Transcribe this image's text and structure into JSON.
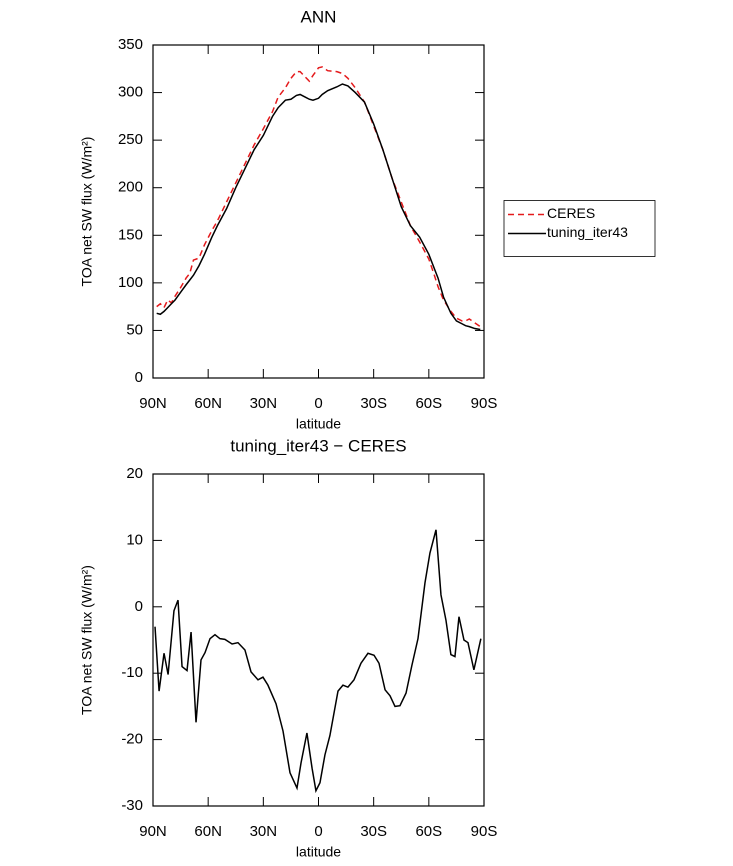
{
  "chart_data": [
    {
      "type": "line",
      "title": "ANN",
      "x_label": "latitude",
      "y_label": "TOA net SW flux (W/m²)",
      "x": [
        88,
        86,
        84,
        82,
        80,
        78,
        75,
        72,
        70,
        68,
        65,
        62,
        58,
        55,
        50,
        45,
        40,
        35,
        30,
        25,
        22,
        18,
        15,
        12,
        10,
        7,
        5,
        3,
        0,
        -2,
        -5,
        -10,
        -13,
        -16,
        -20,
        -25,
        -30,
        -35,
        -40,
        -45,
        -50,
        -55,
        -60,
        -63,
        -65,
        -68,
        -72,
        -75,
        -78,
        -80,
        -82,
        -85,
        -88
      ],
      "series": [
        {
          "name": "CERES",
          "color": "#e41a1c",
          "dash": "dashed",
          "values": [
            75,
            78,
            74,
            82,
            79,
            86,
            95,
            105,
            110,
            124,
            126,
            140,
            155,
            165,
            185,
            205,
            225,
            245,
            262,
            280,
            295,
            305,
            315,
            322,
            322,
            316,
            312,
            318,
            326,
            327,
            323,
            322,
            320,
            315,
            305,
            290,
            265,
            240,
            210,
            185,
            160,
            143,
            125,
            108,
            96,
            82,
            70,
            63,
            60,
            60,
            62,
            58,
            54
          ]
        },
        {
          "name": "tuning_iter43",
          "color": "#000000",
          "dash": "solid",
          "values": [
            68,
            67,
            70,
            74,
            78,
            82,
            90,
            98,
            103,
            108,
            118,
            130,
            148,
            160,
            178,
            200,
            220,
            240,
            255,
            275,
            284,
            292,
            293,
            297,
            298,
            295,
            293,
            292,
            294,
            298,
            302,
            306,
            309,
            307,
            300,
            290,
            267,
            240,
            210,
            180,
            160,
            148,
            130,
            115,
            105,
            85,
            68,
            60,
            57,
            55,
            54,
            52,
            51
          ]
        }
      ],
      "xlim": [
        90,
        -90
      ],
      "xticks": [
        {
          "value": 90,
          "label": "90N"
        },
        {
          "value": 60,
          "label": "60N"
        },
        {
          "value": 30,
          "label": "30N"
        },
        0,
        {
          "value": -30,
          "label": "30S"
        },
        {
          "value": -60,
          "label": "60S"
        },
        {
          "value": -90,
          "label": "90S"
        }
      ],
      "ylim": [
        0,
        350
      ],
      "yticks": [
        0,
        50,
        100,
        150,
        200,
        250,
        300,
        350
      ],
      "legend": "right"
    },
    {
      "type": "line",
      "title": "tuning_iter43 − CERES",
      "x_label": "latitude",
      "y_label": "TOA net SW flux (W/m²)",
      "x": [
        88.9,
        86.7,
        84.0,
        81.8,
        78.6,
        76.4,
        74.2,
        71.5,
        69.3,
        66.6,
        63.9,
        61.7,
        59.0,
        56.3,
        53.6,
        50.9,
        47.0,
        43.8,
        40.0,
        36.7,
        32.9,
        30.2,
        27.5,
        23.1,
        19.3,
        15.5,
        11.7,
        9.5,
        6.3,
        3.5,
        1.4,
        -0.8,
        -3.5,
        -6.2,
        -10.6,
        -13.3,
        -16.0,
        -19.3,
        -23.1,
        -26.9,
        -30.2,
        -32.9,
        -36.2,
        -38.9,
        -41.6,
        -44.3,
        -47.6,
        -50.8,
        -54.1,
        -57.9,
        -60.6,
        -63.9,
        -66.6,
        -69.3,
        -72.0,
        -74.2,
        -76.4,
        -79.1,
        -81.3,
        -84.5,
        -88.3
      ],
      "series": [
        {
          "color": "#000000",
          "dash": "solid",
          "values": [
            -3,
            -12.7,
            -7,
            -10.2,
            -0.6,
            1,
            -9,
            -9.6,
            -3.8,
            -17.4,
            -8,
            -6.9,
            -4.8,
            -4.2,
            -4.8,
            -4.9,
            -5.6,
            -5.4,
            -6.5,
            -9.8,
            -11,
            -10.6,
            -11.8,
            -14.6,
            -18.7,
            -25,
            -27.3,
            -23.5,
            -19,
            -24.3,
            -27.7,
            -26.5,
            -22.3,
            -19.4,
            -12.7,
            -11.8,
            -12.1,
            -11,
            -8.5,
            -7,
            -7.3,
            -8.5,
            -12.5,
            -13.4,
            -15,
            -14.9,
            -13,
            -8.8,
            -4.8,
            3.6,
            8.1,
            11.6,
            1.8,
            -2,
            -7.2,
            -7.5,
            -1.5,
            -5,
            -5.4,
            -9.5,
            -4.8
          ]
        }
      ],
      "xlim": [
        90,
        -90
      ],
      "xticks": [
        {
          "value": 90,
          "label": "90N"
        },
        {
          "value": 60,
          "label": "60N"
        },
        {
          "value": 30,
          "label": "30N"
        },
        0,
        {
          "value": -30,
          "label": "30S"
        },
        {
          "value": -60,
          "label": "60S"
        },
        {
          "value": -90,
          "label": "90S"
        }
      ],
      "ylim": [
        -30,
        20
      ],
      "yticks": [
        -30,
        -20,
        -10,
        0,
        10,
        20
      ]
    }
  ]
}
